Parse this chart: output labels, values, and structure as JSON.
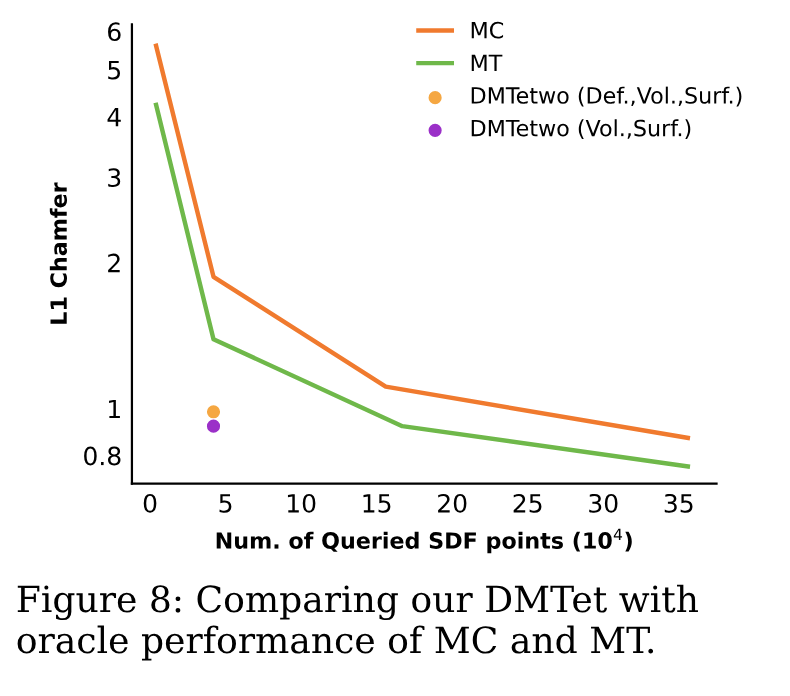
{
  "chart_data": {
    "type": "line",
    "xlabel": "Num. of Queried SDF points (10$^{4}$)",
    "ylabel": "L1 Chamfer",
    "log": "y",
    "xlim": [
      -1.2,
      37.5
    ],
    "xticks": [
      0,
      5,
      10,
      15,
      20,
      25,
      30,
      35
    ],
    "ylim": [
      0.7,
      6.2
    ],
    "yticks": [
      0.8,
      1,
      2,
      3,
      4,
      5,
      6
    ],
    "grid": false,
    "legend": "top right",
    "series": [
      {
        "name": "MC",
        "color": "#f07a2e",
        "x": [
          0.4,
          4.2,
          15.6,
          35.6
        ],
        "values": [
          5.6,
          1.87,
          1.11,
          0.87
        ]
      },
      {
        "name": "MT",
        "color": "#6fb84a",
        "x": [
          0.4,
          4.2,
          16.7,
          35.6
        ],
        "values": [
          4.23,
          1.39,
          0.92,
          0.76
        ]
      },
      {
        "name": "DMTetwo (Def.,Vol.,Surf.)",
        "type": "scatter",
        "color": "#f5a742",
        "x": [
          4.2
        ],
        "values": [
          0.985
        ]
      },
      {
        "name": "DMTetwo (Vol.,Surf.)",
        "type": "scatter",
        "color": "#9b30c8",
        "x": [
          4.2
        ],
        "values": [
          0.92
        ]
      }
    ],
    "annotations": [
      "Figure 8: Comparing our DMTet with oracle performance of MC and MT."
    ]
  }
}
